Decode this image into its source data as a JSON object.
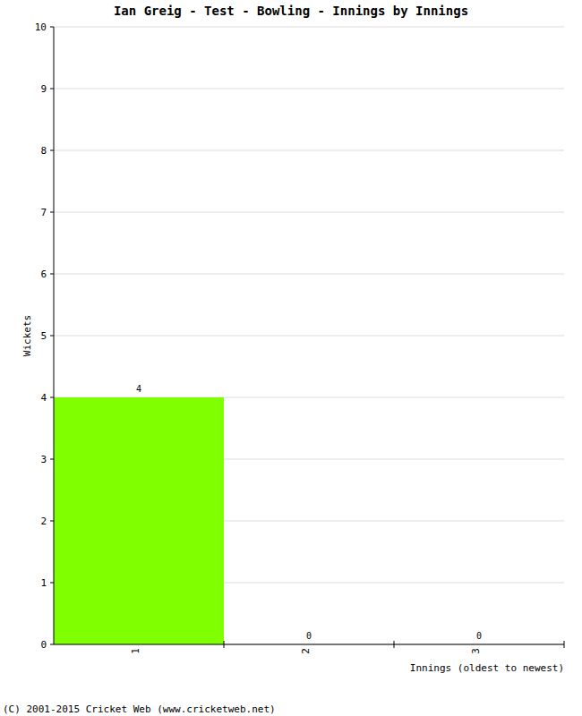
{
  "chart_data": {
    "type": "bar",
    "title": "Ian Greig - Test - Bowling - Innings by Innings",
    "x_label": "Innings (oldest to newest)",
    "y_label": "Wickets",
    "annotations": [
      "(C) 2001-2015 Cricket Web (www.cricketweb.net)"
    ],
    "categories": [
      "1",
      "2",
      "3"
    ],
    "values": [
      4,
      0,
      0
    ],
    "color": "#7fff00",
    "ylim": [
      0,
      10
    ],
    "yticks": [
      0,
      1,
      2,
      3,
      4,
      5,
      6,
      7,
      8,
      9,
      10
    ],
    "grid": true,
    "data_labels": true
  }
}
